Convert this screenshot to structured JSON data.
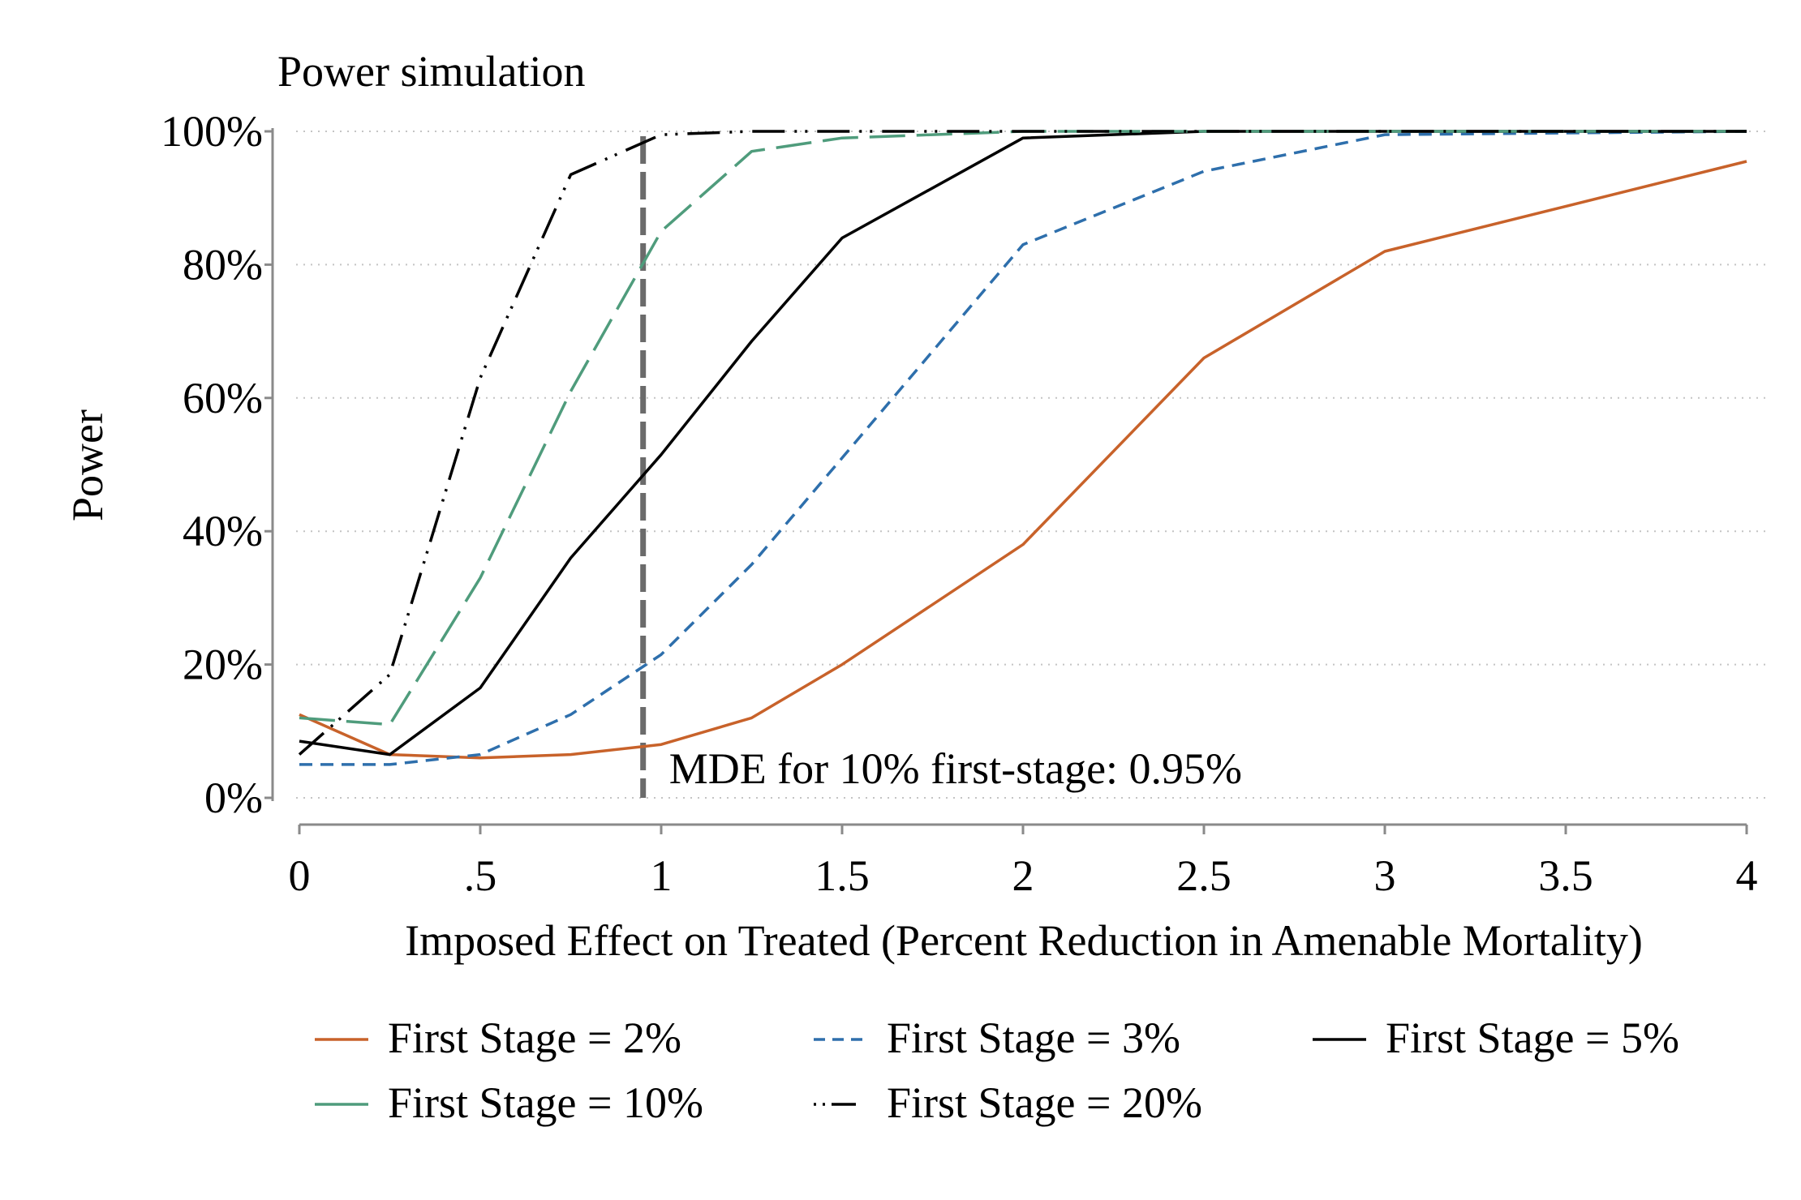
{
  "chart_data": {
    "type": "line",
    "title": "Power simulation",
    "xlabel": "Imposed Effect on Treated (Percent Reduction in Amenable Mortality)",
    "ylabel": "Power",
    "xlim": [
      0,
      4
    ],
    "ylim": [
      0,
      100
    ],
    "x_ticks": [
      {
        "value": 0,
        "label": "0"
      },
      {
        "value": 0.5,
        "label": ".5"
      },
      {
        "value": 1,
        "label": "1"
      },
      {
        "value": 1.5,
        "label": "1.5"
      },
      {
        "value": 2,
        "label": "2"
      },
      {
        "value": 2.5,
        "label": "2.5"
      },
      {
        "value": 3,
        "label": "3"
      },
      {
        "value": 3.5,
        "label": "3.5"
      },
      {
        "value": 4,
        "label": "4"
      }
    ],
    "y_ticks": [
      {
        "value": 0,
        "label": "0%"
      },
      {
        "value": 20,
        "label": "20%"
      },
      {
        "value": 40,
        "label": "40%"
      },
      {
        "value": 60,
        "label": "60%"
      },
      {
        "value": 80,
        "label": "80%"
      },
      {
        "value": 100,
        "label": "100%"
      }
    ],
    "grid": "horizontal dotted",
    "legend_position": "bottom",
    "series": [
      {
        "name": "First Stage = 2%",
        "color": "#c8622a",
        "dash": "solid",
        "x": [
          0,
          0.25,
          0.5,
          0.75,
          1,
          1.25,
          1.5,
          2,
          2.5,
          3,
          4
        ],
        "y": [
          12.5,
          6.5,
          6,
          6.5,
          8,
          12,
          20,
          38,
          66,
          82,
          95.5
        ]
      },
      {
        "name": "First Stage = 3%",
        "color": "#2e6fac",
        "dash": "short-dash",
        "x": [
          0,
          0.25,
          0.5,
          0.75,
          1,
          1.25,
          1.5,
          2,
          2.5,
          3,
          4
        ],
        "y": [
          5,
          5,
          6.5,
          12.5,
          21.5,
          35,
          51,
          83,
          94,
          99.5,
          100
        ]
      },
      {
        "name": "First Stage = 5%",
        "color": "#000000",
        "dash": "solid",
        "x": [
          0,
          0.25,
          0.5,
          0.75,
          1,
          1.25,
          1.5,
          2,
          2.5,
          3,
          4
        ],
        "y": [
          8.5,
          6.5,
          16.5,
          36,
          51.5,
          68.5,
          84,
          99,
          100,
          100,
          100
        ]
      },
      {
        "name": "First Stage = 10%",
        "color": "#4f9c7c",
        "dash": "long-dash",
        "x": [
          0,
          0.25,
          0.5,
          0.75,
          1,
          1.25,
          1.5,
          2,
          2.5,
          3,
          4
        ],
        "y": [
          12,
          11,
          33,
          61,
          85,
          97,
          99,
          100,
          100,
          100,
          100
        ]
      },
      {
        "name": "First Stage = 20%",
        "color": "#000000",
        "dash": "long-dash-dot-dot",
        "x": [
          0,
          0.25,
          0.5,
          0.75,
          1,
          1.25,
          1.5,
          2,
          2.5,
          3,
          4
        ],
        "y": [
          6.5,
          18.5,
          63,
          93.5,
          99.5,
          100,
          100,
          100,
          100,
          100,
          100
        ]
      }
    ],
    "reference_line": {
      "x": 0.95,
      "color": "#6b6b6b",
      "label": "MDE for 10% first-stage: 0.95%"
    }
  }
}
